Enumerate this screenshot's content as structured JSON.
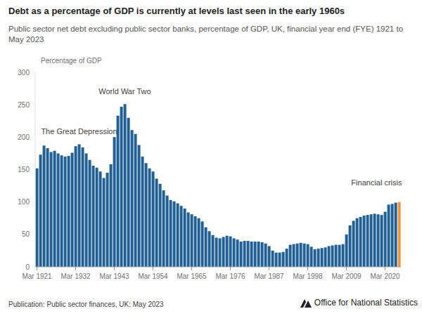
{
  "chart_data": {
    "type": "bar",
    "title": "Debt as a percentage of GDP is currently at levels last seen in the early 1960s",
    "subtitle": "Public sector net debt excluding public sector banks, percentage of GDP, UK, financial year end (FYE) 1921 to May 2023",
    "y_label": "Percentage of GDP",
    "categories": [
      "Mar 1921",
      null,
      null,
      null,
      null,
      null,
      null,
      null,
      null,
      null,
      null,
      "Mar 1932",
      null,
      null,
      null,
      null,
      null,
      null,
      null,
      null,
      null,
      null,
      "Mar 1943",
      null,
      null,
      null,
      null,
      null,
      null,
      null,
      null,
      null,
      null,
      "Mar 1954",
      null,
      null,
      null,
      null,
      null,
      null,
      null,
      null,
      null,
      null,
      "Mar 1965",
      null,
      null,
      null,
      null,
      null,
      null,
      null,
      null,
      null,
      null,
      "Mar 1976",
      null,
      null,
      null,
      null,
      null,
      null,
      null,
      null,
      null,
      null,
      "Mar 1987",
      null,
      null,
      null,
      null,
      null,
      null,
      null,
      null,
      null,
      null,
      "Mar 1998",
      null,
      null,
      null,
      null,
      null,
      null,
      null,
      null,
      null,
      null,
      "Mar 2009",
      null,
      null,
      null,
      null,
      null,
      null,
      null,
      null,
      null,
      null,
      "Mar 2020",
      null,
      null,
      null,
      null
    ],
    "values": [
      152,
      173,
      187,
      183,
      177,
      179,
      175,
      172,
      170,
      171,
      176,
      186,
      189,
      184,
      175,
      165,
      156,
      153,
      147,
      137,
      145,
      158,
      200,
      233,
      247,
      251,
      230,
      211,
      205,
      188,
      170,
      160,
      152,
      147,
      136,
      128,
      118,
      110,
      103,
      101,
      98,
      94,
      90,
      84,
      81,
      78,
      75,
      70,
      61,
      55,
      49,
      45,
      44,
      46,
      48,
      47,
      44,
      42,
      39,
      40,
      40,
      39,
      39,
      39,
      38,
      36,
      32,
      25,
      22,
      22,
      23,
      28,
      34,
      35,
      36,
      37,
      36,
      35,
      31,
      27,
      28,
      29,
      30,
      32,
      33,
      34,
      34,
      35,
      50,
      64,
      71,
      75,
      77,
      79,
      80,
      81,
      82,
      81,
      80,
      85,
      96,
      97,
      99,
      100
    ],
    "colors": [
      "#206095",
      "#206095",
      "#206095",
      "#206095",
      "#206095",
      "#206095",
      "#206095",
      "#206095",
      "#206095",
      "#206095",
      "#206095",
      "#206095",
      "#206095",
      "#206095",
      "#206095",
      "#206095",
      "#206095",
      "#206095",
      "#206095",
      "#206095",
      "#206095",
      "#206095",
      "#206095",
      "#206095",
      "#206095",
      "#206095",
      "#206095",
      "#206095",
      "#206095",
      "#206095",
      "#206095",
      "#206095",
      "#206095",
      "#206095",
      "#206095",
      "#206095",
      "#206095",
      "#206095",
      "#206095",
      "#206095",
      "#206095",
      "#206095",
      "#206095",
      "#206095",
      "#206095",
      "#206095",
      "#206095",
      "#206095",
      "#206095",
      "#206095",
      "#206095",
      "#206095",
      "#206095",
      "#206095",
      "#206095",
      "#206095",
      "#206095",
      "#206095",
      "#206095",
      "#206095",
      "#206095",
      "#206095",
      "#206095",
      "#206095",
      "#206095",
      "#206095",
      "#206095",
      "#206095",
      "#206095",
      "#206095",
      "#206095",
      "#206095",
      "#206095",
      "#206095",
      "#206095",
      "#206095",
      "#206095",
      "#206095",
      "#206095",
      "#206095",
      "#206095",
      "#206095",
      "#206095",
      "#206095",
      "#206095",
      "#206095",
      "#206095",
      "#206095",
      "#206095",
      "#206095",
      "#206095",
      "#206095",
      "#206095",
      "#206095",
      "#206095",
      "#206095",
      "#206095",
      "#206095",
      "#206095",
      "#206095",
      "#206095",
      "#206095",
      "#206095",
      "#f39431"
    ],
    "ylim": [
      0,
      300
    ],
    "yticks": [
      0,
      50,
      100,
      150,
      200,
      250,
      300
    ],
    "grid": false,
    "annotations": [
      "World War Two",
      "The Great Depression",
      "Financial crisis"
    ],
    "source_note": "Publication: Public sector finances, UK: May 2023",
    "publisher": "Office for National Statistics"
  }
}
